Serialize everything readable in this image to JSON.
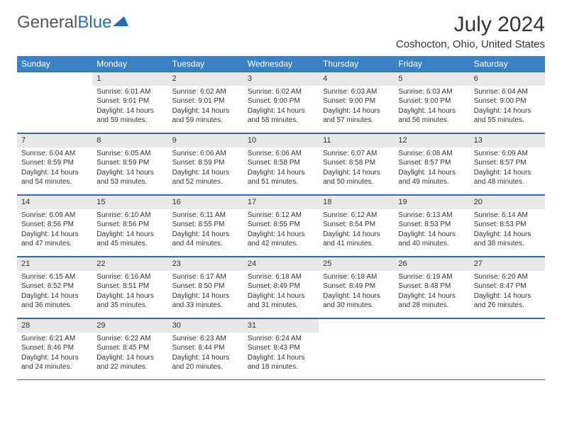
{
  "logo": {
    "text_gray": "General",
    "text_blue": "Blue"
  },
  "title": "July 2024",
  "location": "Coshocton, Ohio, United States",
  "colors": {
    "header_bg": "#3b82c4",
    "header_text": "#ffffff",
    "daynum_bg": "#e8e8e8",
    "border": "#2b6cb0",
    "body_text": "#333333",
    "logo_gray": "#555555",
    "logo_blue": "#2b6cb0",
    "background": "#ffffff"
  },
  "weekdays": [
    "Sunday",
    "Monday",
    "Tuesday",
    "Wednesday",
    "Thursday",
    "Friday",
    "Saturday"
  ],
  "weeks": [
    [
      {
        "day": "",
        "sunrise": "",
        "sunset": "",
        "daylight": ""
      },
      {
        "day": "1",
        "sunrise": "Sunrise: 6:01 AM",
        "sunset": "Sunset: 9:01 PM",
        "daylight": "Daylight: 14 hours and 59 minutes."
      },
      {
        "day": "2",
        "sunrise": "Sunrise: 6:02 AM",
        "sunset": "Sunset: 9:01 PM",
        "daylight": "Daylight: 14 hours and 59 minutes."
      },
      {
        "day": "3",
        "sunrise": "Sunrise: 6:02 AM",
        "sunset": "Sunset: 9:00 PM",
        "daylight": "Daylight: 14 hours and 58 minutes."
      },
      {
        "day": "4",
        "sunrise": "Sunrise: 6:03 AM",
        "sunset": "Sunset: 9:00 PM",
        "daylight": "Daylight: 14 hours and 57 minutes."
      },
      {
        "day": "5",
        "sunrise": "Sunrise: 6:03 AM",
        "sunset": "Sunset: 9:00 PM",
        "daylight": "Daylight: 14 hours and 56 minutes."
      },
      {
        "day": "6",
        "sunrise": "Sunrise: 6:04 AM",
        "sunset": "Sunset: 9:00 PM",
        "daylight": "Daylight: 14 hours and 55 minutes."
      }
    ],
    [
      {
        "day": "7",
        "sunrise": "Sunrise: 6:04 AM",
        "sunset": "Sunset: 8:59 PM",
        "daylight": "Daylight: 14 hours and 54 minutes."
      },
      {
        "day": "8",
        "sunrise": "Sunrise: 6:05 AM",
        "sunset": "Sunset: 8:59 PM",
        "daylight": "Daylight: 14 hours and 53 minutes."
      },
      {
        "day": "9",
        "sunrise": "Sunrise: 6:06 AM",
        "sunset": "Sunset: 8:59 PM",
        "daylight": "Daylight: 14 hours and 52 minutes."
      },
      {
        "day": "10",
        "sunrise": "Sunrise: 6:06 AM",
        "sunset": "Sunset: 8:58 PM",
        "daylight": "Daylight: 14 hours and 51 minutes."
      },
      {
        "day": "11",
        "sunrise": "Sunrise: 6:07 AM",
        "sunset": "Sunset: 8:58 PM",
        "daylight": "Daylight: 14 hours and 50 minutes."
      },
      {
        "day": "12",
        "sunrise": "Sunrise: 6:08 AM",
        "sunset": "Sunset: 8:57 PM",
        "daylight": "Daylight: 14 hours and 49 minutes."
      },
      {
        "day": "13",
        "sunrise": "Sunrise: 6:09 AM",
        "sunset": "Sunset: 8:57 PM",
        "daylight": "Daylight: 14 hours and 48 minutes."
      }
    ],
    [
      {
        "day": "14",
        "sunrise": "Sunrise: 6:09 AM",
        "sunset": "Sunset: 8:56 PM",
        "daylight": "Daylight: 14 hours and 47 minutes."
      },
      {
        "day": "15",
        "sunrise": "Sunrise: 6:10 AM",
        "sunset": "Sunset: 8:56 PM",
        "daylight": "Daylight: 14 hours and 45 minutes."
      },
      {
        "day": "16",
        "sunrise": "Sunrise: 6:11 AM",
        "sunset": "Sunset: 8:55 PM",
        "daylight": "Daylight: 14 hours and 44 minutes."
      },
      {
        "day": "17",
        "sunrise": "Sunrise: 6:12 AM",
        "sunset": "Sunset: 8:55 PM",
        "daylight": "Daylight: 14 hours and 42 minutes."
      },
      {
        "day": "18",
        "sunrise": "Sunrise: 6:12 AM",
        "sunset": "Sunset: 8:54 PM",
        "daylight": "Daylight: 14 hours and 41 minutes."
      },
      {
        "day": "19",
        "sunrise": "Sunrise: 6:13 AM",
        "sunset": "Sunset: 8:53 PM",
        "daylight": "Daylight: 14 hours and 40 minutes."
      },
      {
        "day": "20",
        "sunrise": "Sunrise: 6:14 AM",
        "sunset": "Sunset: 8:53 PM",
        "daylight": "Daylight: 14 hours and 38 minutes."
      }
    ],
    [
      {
        "day": "21",
        "sunrise": "Sunrise: 6:15 AM",
        "sunset": "Sunset: 8:52 PM",
        "daylight": "Daylight: 14 hours and 36 minutes."
      },
      {
        "day": "22",
        "sunrise": "Sunrise: 6:16 AM",
        "sunset": "Sunset: 8:51 PM",
        "daylight": "Daylight: 14 hours and 35 minutes."
      },
      {
        "day": "23",
        "sunrise": "Sunrise: 6:17 AM",
        "sunset": "Sunset: 8:50 PM",
        "daylight": "Daylight: 14 hours and 33 minutes."
      },
      {
        "day": "24",
        "sunrise": "Sunrise: 6:18 AM",
        "sunset": "Sunset: 8:49 PM",
        "daylight": "Daylight: 14 hours and 31 minutes."
      },
      {
        "day": "25",
        "sunrise": "Sunrise: 6:18 AM",
        "sunset": "Sunset: 8:49 PM",
        "daylight": "Daylight: 14 hours and 30 minutes."
      },
      {
        "day": "26",
        "sunrise": "Sunrise: 6:19 AM",
        "sunset": "Sunset: 8:48 PM",
        "daylight": "Daylight: 14 hours and 28 minutes."
      },
      {
        "day": "27",
        "sunrise": "Sunrise: 6:20 AM",
        "sunset": "Sunset: 8:47 PM",
        "daylight": "Daylight: 14 hours and 26 minutes."
      }
    ],
    [
      {
        "day": "28",
        "sunrise": "Sunrise: 6:21 AM",
        "sunset": "Sunset: 8:46 PM",
        "daylight": "Daylight: 14 hours and 24 minutes."
      },
      {
        "day": "29",
        "sunrise": "Sunrise: 6:22 AM",
        "sunset": "Sunset: 8:45 PM",
        "daylight": "Daylight: 14 hours and 22 minutes."
      },
      {
        "day": "30",
        "sunrise": "Sunrise: 6:23 AM",
        "sunset": "Sunset: 8:44 PM",
        "daylight": "Daylight: 14 hours and 20 minutes."
      },
      {
        "day": "31",
        "sunrise": "Sunrise: 6:24 AM",
        "sunset": "Sunset: 8:43 PM",
        "daylight": "Daylight: 14 hours and 18 minutes."
      },
      {
        "day": "",
        "sunrise": "",
        "sunset": "",
        "daylight": ""
      },
      {
        "day": "",
        "sunrise": "",
        "sunset": "",
        "daylight": ""
      },
      {
        "day": "",
        "sunrise": "",
        "sunset": "",
        "daylight": ""
      }
    ]
  ]
}
